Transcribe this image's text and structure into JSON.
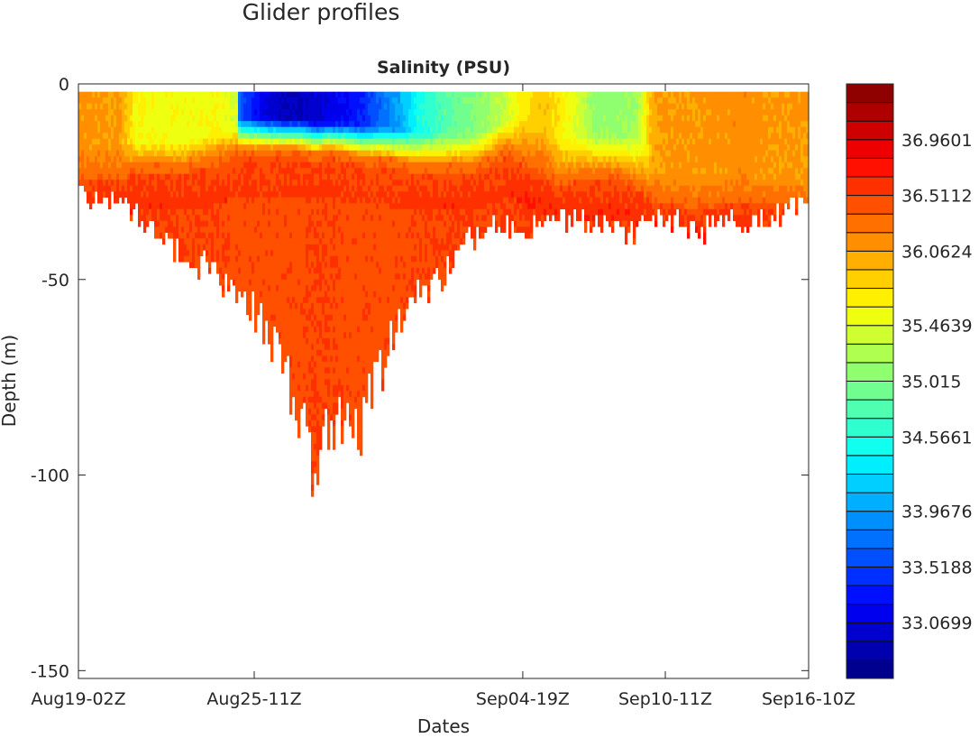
{
  "figure_title": "Glider profiles",
  "chart_data": {
    "type": "heatmap",
    "title": "Salinity  (PSU)",
    "xlabel": "Dates",
    "ylabel": "Depth  (m)",
    "x_units": "days since Aug19-02Z",
    "xlim": [
      0,
      28.33
    ],
    "ylim": [
      -152,
      0
    ],
    "yticks": [
      0,
      -50,
      -100,
      -150
    ],
    "ytick_labels": [
      "0",
      "-50",
      "-100",
      "-150"
    ],
    "xticks": [
      0,
      6.82,
      17.24,
      22.77,
      28.33
    ],
    "xtick_labels": [
      "Aug19-02Z",
      "Aug25-11Z",
      "Sep04-19Z",
      "Sep10-11Z",
      "Sep16-10Z"
    ],
    "colorbar": {
      "colormap": "jet",
      "clim": [
        32.62,
        37.41
      ],
      "levels": 32,
      "tick_values": [
        36.9601,
        36.5112,
        36.0624,
        35.4639,
        35.015,
        34.5661,
        33.9676,
        33.5188,
        33.0699
      ],
      "tick_labels": [
        "36.9601",
        "36.5112",
        "36.0624",
        "35.4639",
        "35.015",
        "34.5661",
        "33.9676",
        "33.5188",
        "33.0699"
      ]
    },
    "profiles": {
      "x": [
        0,
        1.5,
        2.2,
        4.0,
        5.4,
        6.1,
        6.2,
        7.2,
        7.9,
        8.6,
        9.1,
        9.6,
        10.3,
        11.0,
        11.7,
        12.4,
        13.1,
        13.8,
        14.5,
        15.2,
        16.0,
        16.6,
        17.2,
        18.0,
        18.6,
        19.4,
        20.0,
        20.8,
        21.6,
        22.2,
        22.8,
        24.2,
        25.6,
        27.0,
        28.33
      ],
      "bottom_depth": [
        28,
        30,
        33,
        42,
        48,
        53,
        55,
        60,
        74,
        83,
        107,
        88,
        87,
        85,
        73,
        59,
        52,
        50,
        45,
        38,
        36,
        36,
        36,
        35,
        34,
        34,
        35,
        37,
        37,
        34,
        34,
        36,
        35,
        33,
        30
      ],
      "surface_salinity": [
        36.1,
        36.1,
        35.6,
        35.55,
        35.6,
        35.4,
        33.6,
        33.1,
        32.9,
        32.9,
        33.0,
        33.1,
        33.2,
        33.4,
        33.7,
        34.0,
        34.5,
        34.7,
        34.9,
        35.0,
        35.2,
        35.4,
        35.7,
        35.9,
        35.7,
        35.4,
        35.1,
        35.1,
        35.2,
        36.0,
        36.1,
        36.1,
        36.15,
        36.1,
        36.1
      ],
      "mixed_layer_depth": [
        15,
        15,
        14,
        14,
        12,
        10,
        8,
        8,
        8,
        8,
        9,
        9,
        9,
        10,
        10,
        11,
        12,
        12,
        12,
        12,
        10,
        8,
        8,
        10,
        14,
        12,
        12,
        12,
        12,
        20,
        22,
        23,
        22,
        24,
        24
      ],
      "transition_depth": [
        22,
        22,
        20,
        20,
        18,
        16,
        16,
        16,
        16,
        16,
        17,
        16,
        17,
        18,
        18,
        19,
        20,
        20,
        20,
        20,
        18,
        16,
        18,
        20,
        24,
        22,
        22,
        22,
        24,
        27,
        28,
        29,
        28,
        28,
        28
      ],
      "deep_salinity": [
        36.55,
        36.6,
        36.55,
        36.5,
        36.5,
        36.45,
        36.45,
        36.45,
        36.45,
        36.45,
        36.5,
        36.5,
        36.45,
        36.45,
        36.45,
        36.45,
        36.5,
        36.5,
        36.5,
        36.5,
        36.5,
        36.5,
        36.55,
        36.55,
        36.55,
        36.55,
        36.55,
        36.55,
        36.55,
        36.6,
        36.6,
        36.6,
        36.6,
        36.55,
        36.5
      ]
    }
  }
}
